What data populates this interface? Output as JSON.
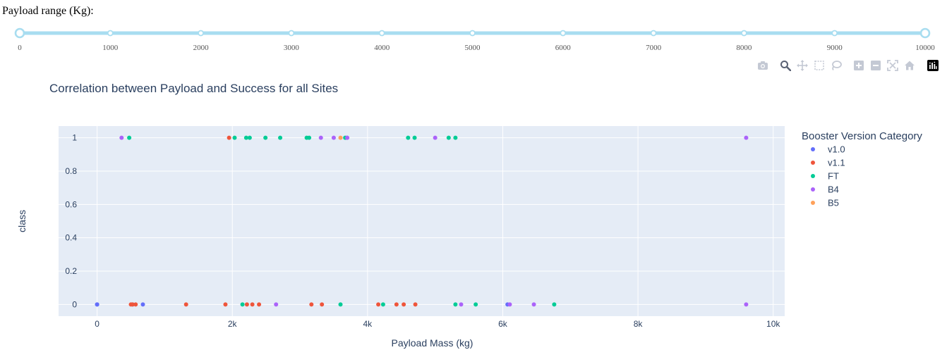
{
  "slider": {
    "label": "Payload range (Kg):",
    "min": 0,
    "max": 10000,
    "step_marks": [
      "0",
      "1000",
      "2000",
      "3000",
      "4000",
      "5000",
      "6000",
      "7000",
      "8000",
      "9000",
      "10000"
    ],
    "value": [
      0,
      10000
    ],
    "track_color": "#a8ddf0",
    "handle_color": "#a8ddf0"
  },
  "modebar": {
    "icons": [
      "camera-icon",
      "zoom-icon",
      "pan-icon",
      "box-select-icon",
      "lasso-icon",
      "zoom-in-icon",
      "zoom-out-icon",
      "autoscale-icon",
      "reset-axes-icon",
      "plotly-logo-icon"
    ],
    "active": "zoom-icon"
  },
  "chart_data": {
    "type": "scatter",
    "title": "Correlation between Payload and Success for all Sites",
    "xlabel": "Payload Mass (kg)",
    "ylabel": "class",
    "xlim": [
      -570,
      10170
    ],
    "ylim": [
      -0.07,
      1.07
    ],
    "x_ticks": [
      0,
      2000,
      4000,
      6000,
      8000,
      10000
    ],
    "x_tick_labels": [
      "0",
      "2k",
      "4k",
      "6k",
      "8k",
      "10k"
    ],
    "y_ticks": [
      0,
      0.2,
      0.4,
      0.6,
      0.8,
      1
    ],
    "y_tick_labels": [
      "0",
      "0.2",
      "0.4",
      "0.6",
      "0.8",
      "1"
    ],
    "grid": true,
    "legend_title": "Booster Version Category",
    "legend_position": "right",
    "series": [
      {
        "name": "v1.0",
        "color": "#636efa",
        "points": [
          [
            0,
            0
          ],
          [
            0,
            0
          ],
          [
            525,
            0
          ],
          [
            677,
            0
          ],
          [
            3696,
            1
          ],
          [
            6070,
            0
          ]
        ]
      },
      {
        "name": "v1.1",
        "color": "#ef553b",
        "points": [
          [
            500,
            0
          ],
          [
            525,
            0
          ],
          [
            570,
            0
          ],
          [
            1316,
            0
          ],
          [
            1898,
            0
          ],
          [
            1952,
            1
          ],
          [
            2216,
            0
          ],
          [
            2296,
            0
          ],
          [
            2395,
            0
          ],
          [
            3170,
            0
          ],
          [
            3325,
            0
          ],
          [
            4159,
            0
          ],
          [
            4428,
            0
          ],
          [
            4535,
            0
          ],
          [
            4707,
            0
          ]
        ]
      },
      {
        "name": "FT",
        "color": "#00cc96",
        "points": [
          [
            475,
            1
          ],
          [
            2034,
            1
          ],
          [
            2150,
            0
          ],
          [
            2205,
            1
          ],
          [
            2257,
            1
          ],
          [
            2490,
            1
          ],
          [
            2708,
            1
          ],
          [
            3100,
            1
          ],
          [
            3136,
            1
          ],
          [
            3600,
            0
          ],
          [
            3669,
            1
          ],
          [
            4230,
            0
          ],
          [
            4600,
            1
          ],
          [
            4696,
            1
          ],
          [
            5200,
            1
          ],
          [
            5300,
            0
          ],
          [
            5300,
            1
          ],
          [
            5600,
            0
          ],
          [
            6761,
            0
          ]
        ]
      },
      {
        "name": "B4",
        "color": "#ab63fa",
        "points": [
          [
            362,
            1
          ],
          [
            2647,
            0
          ],
          [
            3310,
            1
          ],
          [
            3500,
            1
          ],
          [
            3700,
            1
          ],
          [
            5000,
            1
          ],
          [
            5384,
            0
          ],
          [
            6104,
            0
          ],
          [
            6460,
            0
          ],
          [
            9600,
            0
          ],
          [
            9600,
            1
          ]
        ]
      },
      {
        "name": "B5",
        "color": "#ffa15a",
        "points": [
          [
            3600,
            1
          ]
        ]
      }
    ]
  }
}
